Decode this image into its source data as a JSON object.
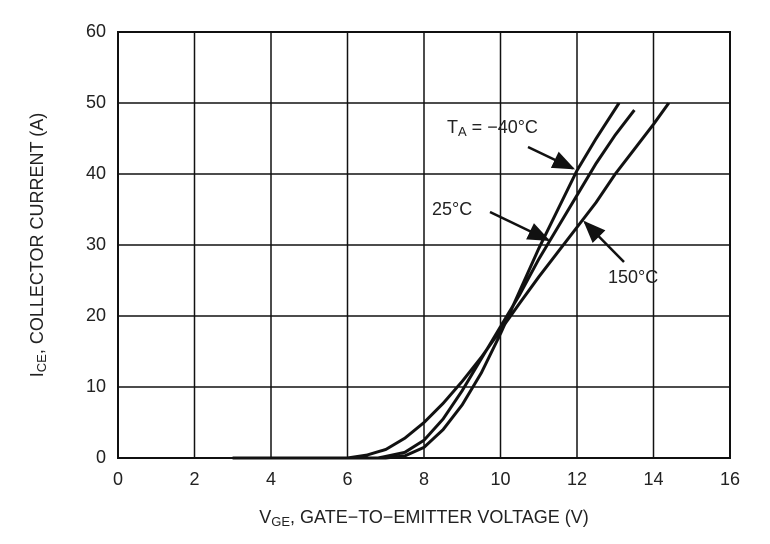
{
  "chart_data": {
    "type": "line",
    "xlabel": [
      "V",
      "GE",
      ", GATE−TO−EMITTER VOLTAGE (V)"
    ],
    "ylabel": [
      "I",
      "CE",
      ", COLLECTOR CURRENT (A)"
    ],
    "annotation_prefix": [
      "T",
      "A",
      " = "
    ],
    "xlim": [
      0,
      16
    ],
    "xticks": [
      0,
      2,
      4,
      6,
      8,
      10,
      12,
      14,
      16
    ],
    "ylim": [
      0,
      60
    ],
    "yticks": [
      0,
      10,
      20,
      30,
      40,
      50,
      60
    ],
    "grid": true,
    "series": [
      {
        "name": "−40°C",
        "color": "#111111",
        "x": [
          3,
          7,
          7.5,
          8,
          8.5,
          9,
          9.5,
          10,
          10.5,
          11,
          11.5,
          12,
          12.5,
          13.1
        ],
        "values": [
          0,
          0,
          0.3,
          1.5,
          4,
          7.5,
          12,
          17.5,
          23.5,
          29.5,
          35,
          40.5,
          45,
          50
        ]
      },
      {
        "name": "25°C",
        "color": "#111111",
        "x": [
          3,
          6.8,
          7.5,
          8,
          8.5,
          9,
          9.5,
          10,
          10.5,
          11,
          11.5,
          12,
          12.5,
          13,
          13.5
        ],
        "values": [
          0,
          0,
          0.8,
          2.5,
          5.5,
          9.5,
          14,
          18.5,
          23,
          28,
          32.5,
          37,
          41.5,
          45.5,
          49
        ]
      },
      {
        "name": "150°C",
        "color": "#111111",
        "x": [
          3,
          6,
          6.5,
          7,
          7.5,
          8,
          8.5,
          9,
          9.5,
          10,
          10.5,
          11,
          11.5,
          12,
          12.5,
          13,
          13.5,
          14,
          14.4
        ],
        "values": [
          0,
          0,
          0.4,
          1.2,
          2.8,
          5,
          7.7,
          10.8,
          14.2,
          18,
          21.8,
          25.5,
          29,
          32.5,
          36,
          40,
          43.5,
          47,
          50
        ]
      }
    ]
  }
}
